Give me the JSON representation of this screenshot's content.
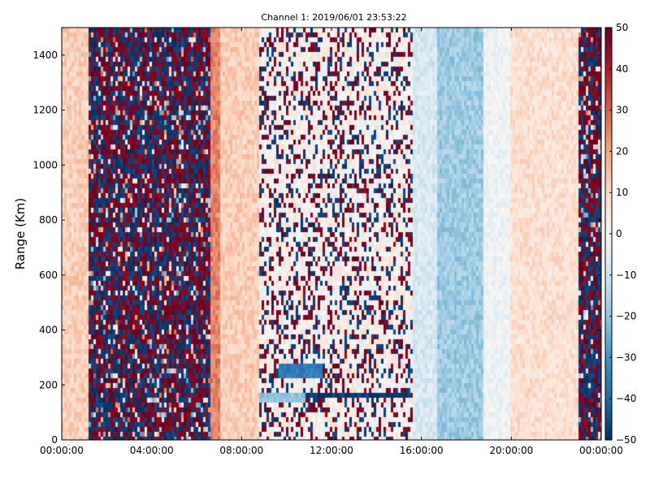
{
  "chart_data": {
    "type": "heatmap",
    "title": "Channel 1: 2019/06/01 23:53:22",
    "xlabel": "",
    "ylabel": "Range (Km)",
    "x_tick_labels": [
      "00:00:00",
      "04:00:00",
      "08:00:00",
      "12:00:00",
      "16:00:00",
      "20:00:00",
      "00:00:00"
    ],
    "x_tick_hours": [
      0,
      4,
      8,
      12,
      16,
      20,
      24
    ],
    "xlim_hours": [
      0,
      24
    ],
    "y_ticks": [
      0,
      200,
      400,
      600,
      800,
      1000,
      1200,
      1400
    ],
    "ylim": [
      0,
      1500
    ],
    "colorbar": {
      "colormap": "RdBu_r",
      "range": [
        -50,
        50
      ],
      "ticks": [
        50,
        40,
        30,
        20,
        10,
        0,
        -10,
        -20,
        -30,
        -40,
        -50
      ],
      "tick_labels": [
        "50",
        "40",
        "30",
        "20",
        "10",
        "0",
        "−10",
        "−20",
        "−30",
        "−40",
        "−50"
      ]
    },
    "grid": false,
    "bands": [
      {
        "start_hour": 0.0,
        "end_hour": 1.2,
        "pattern": "light-red",
        "level": 12
      },
      {
        "start_hour": 1.2,
        "end_hour": 6.6,
        "pattern": "noise",
        "level": 0
      },
      {
        "start_hour": 6.6,
        "end_hour": 7.0,
        "pattern": "red",
        "level": 25
      },
      {
        "start_hour": 7.0,
        "end_hour": 8.8,
        "pattern": "light-red",
        "level": 12
      },
      {
        "start_hour": 8.8,
        "end_hour": 15.6,
        "pattern": "sparse-noise",
        "level": 3
      },
      {
        "start_hour": 15.6,
        "end_hour": 16.7,
        "pattern": "light-blue",
        "level": -8
      },
      {
        "start_hour": 16.7,
        "end_hour": 18.8,
        "pattern": "blue",
        "level": -18
      },
      {
        "start_hour": 18.8,
        "end_hour": 20.0,
        "pattern": "neutral",
        "level": -2
      },
      {
        "start_hour": 20.0,
        "end_hour": 23.0,
        "pattern": "light-red",
        "level": 8
      },
      {
        "start_hour": 23.0,
        "end_hour": 24.0,
        "pattern": "noise",
        "level": 0
      }
    ],
    "features": [
      {
        "name": "low-range dark blue echo",
        "start_hour": 10.8,
        "end_hour": 15.5,
        "range_km": [
          150,
          180
        ],
        "level": -48
      },
      {
        "name": "mid-range blue streak",
        "start_hour": 9.6,
        "end_hour": 11.6,
        "range_km": [
          220,
          270
        ],
        "level": -35
      },
      {
        "name": "light streak",
        "start_hour": 8.8,
        "end_hour": 10.8,
        "range_km": [
          130,
          170
        ],
        "level": -20
      }
    ]
  }
}
